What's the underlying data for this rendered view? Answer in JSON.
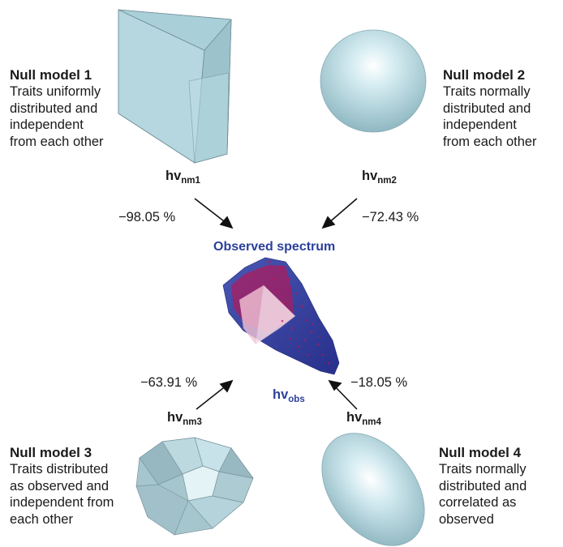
{
  "null_models": [
    {
      "title": "Null model 1",
      "description": [
        "Traits uniformly",
        "distributed and",
        "independent",
        "from each other"
      ],
      "hv_base": "hv",
      "hv_sub": "nm1",
      "change": "−98.05 %",
      "shape": "cube"
    },
    {
      "title": "Null model 2",
      "description": [
        "Traits normally",
        "distributed and",
        "independent",
        "from each other"
      ],
      "hv_base": "hv",
      "hv_sub": "nm2",
      "change": "−72.43 %",
      "shape": "sphere"
    },
    {
      "title": "Null model 3",
      "description": [
        "Traits distributed",
        "as observed and",
        "independent from",
        "each other"
      ],
      "hv_base": "hv",
      "hv_sub": "nm3",
      "change": "−63.91 %",
      "shape": "polyhedron"
    },
    {
      "title": "Null model 4",
      "description": [
        "Traits normally",
        "distributed and",
        "correlated as",
        "observed"
      ],
      "hv_base": "hv",
      "hv_sub": "nm4",
      "change": "−18.05 %",
      "shape": "ellipsoid"
    }
  ],
  "observed": {
    "title": "Observed spectrum",
    "hv_base": "hv",
    "hv_sub": "obs",
    "shape": "observed-hypervolume"
  },
  "colors": {
    "shape_fill": "#a9cfd8",
    "shape_edge": "#6f8c95",
    "observed_blue": "#2c3f9b",
    "observed_points": "#c0144f",
    "text": "#1a1a1a"
  }
}
